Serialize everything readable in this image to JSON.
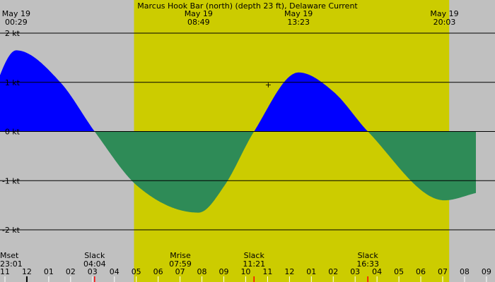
{
  "chart_data": {
    "type": "area",
    "title": "Marcus Hook Bar (north) (depth 23 ft), Delaware Current",
    "ylabel": "",
    "ylim": [
      -2.5,
      2.4
    ],
    "y_ticks": [
      {
        "value": 2,
        "label": "2 kt"
      },
      {
        "value": 1,
        "label": "1 kt"
      },
      {
        "value": 0,
        "label": "0 kt"
      },
      {
        "value": -1,
        "label": "-1 kt"
      },
      {
        "value": -2,
        "label": "-2 kt"
      }
    ],
    "x_start_label": "23:00",
    "x_hour_ticks": [
      "11",
      "12",
      "01",
      "02",
      "03",
      "04",
      "05",
      "06",
      "07",
      "08",
      "09",
      "10",
      "11",
      "12",
      "01",
      "02",
      "03",
      "04",
      "05",
      "06",
      "07",
      "08",
      "09"
    ],
    "top_labels": [
      {
        "date": "May 19",
        "time": "00:29"
      },
      {
        "date": "May 19",
        "time": "08:49"
      },
      {
        "date": "May 19",
        "time": "13:23"
      },
      {
        "date": "May 19",
        "time": "20:03"
      }
    ],
    "bottom_events": [
      {
        "name": "Mset",
        "time": "23:01"
      },
      {
        "name": "Slack",
        "time": "04:04"
      },
      {
        "name": "Mrise",
        "time": "07:59"
      },
      {
        "name": "Slack",
        "time": "11:21"
      },
      {
        "name": "Slack",
        "time": "16:33"
      }
    ],
    "daylight": {
      "start": "05:52",
      "end": "20:16"
    },
    "series": [
      {
        "points": [
          {
            "t": "23:00",
            "v": 0.3
          },
          {
            "t": "00:29",
            "v": 1.65
          },
          {
            "t": "02:30",
            "v": 1.0
          },
          {
            "t": "04:04",
            "v": 0.0
          },
          {
            "t": "06:00",
            "v": -1.1
          },
          {
            "t": "08:49",
            "v": -1.65
          },
          {
            "t": "10:00",
            "v": -1.1
          },
          {
            "t": "11:21",
            "v": 0.0
          },
          {
            "t": "13:23",
            "v": 1.2
          },
          {
            "t": "15:00",
            "v": 0.8
          },
          {
            "t": "16:33",
            "v": 0.0
          },
          {
            "t": "20:03",
            "v": -1.4
          },
          {
            "t": "21:30",
            "v": -1.25
          }
        ]
      }
    ],
    "marker": {
      "t": "12:00",
      "v": 0.95,
      "symbol": "+"
    },
    "colors": {
      "background": "#c0c0c0",
      "daylight": "#cccc00",
      "flood": "#0000ff",
      "ebb": "#2e8b57",
      "grid": "#000000",
      "slack_tick": "#ff0000"
    }
  }
}
